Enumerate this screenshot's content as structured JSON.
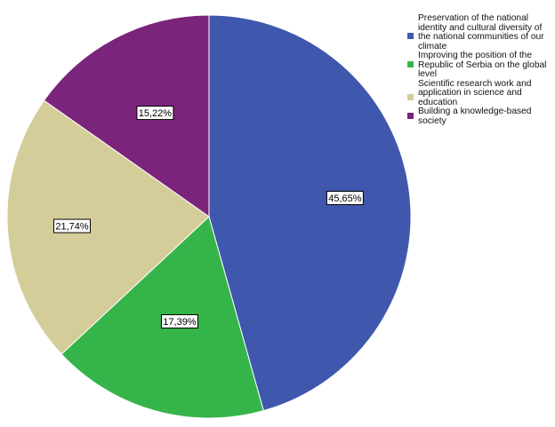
{
  "chart_data": {
    "type": "pie",
    "slices": [
      {
        "label": "Preservation of the national identity and cultural diversity of the national communities of our climate",
        "value": 45.65,
        "data_label": "45,65%",
        "color": "#3f57ad"
      },
      {
        "label": "Improving the position of the Republic of Serbia on the global level",
        "value": 17.39,
        "data_label": "17,39%",
        "color": "#35b44a"
      },
      {
        "label": "Scientific research work and application in science and education",
        "value": 21.74,
        "data_label": "21,74%",
        "color": "#d4cd9a"
      },
      {
        "label": "Building a knowledge-based society",
        "value": 15.22,
        "data_label": "15,22%",
        "color": "#7b247c"
      }
    ],
    "legend_position": "top-right"
  }
}
